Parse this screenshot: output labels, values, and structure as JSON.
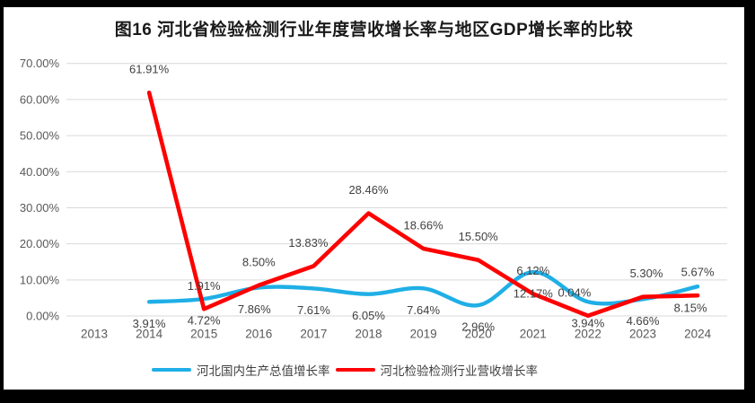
{
  "frame": {
    "background": "#000000",
    "surface": "#ffffff"
  },
  "chart_data": {
    "type": "line",
    "title": "图16 河北省检验检测行业年度营收增长率与地区GDP增长率的比较",
    "categories": [
      "2013",
      "2014",
      "2015",
      "2016",
      "2017",
      "2018",
      "2019",
      "2020",
      "2021",
      "2022",
      "2023",
      "2024"
    ],
    "series": [
      {
        "name": "河北国内生产总值增长率",
        "color": "#1FAFE6",
        "values": [
          null,
          3.91,
          4.72,
          7.86,
          7.61,
          6.05,
          7.64,
          2.96,
          12.17,
          3.94,
          4.66,
          8.15
        ],
        "labels": [
          "",
          "3.91%",
          "4.72%",
          "7.86%",
          "7.61%",
          "6.05%",
          "7.64%",
          "2.96%",
          "12.17%",
          "3.94%",
          "4.66%",
          "8.15%"
        ],
        "label_position": "below",
        "smooth": true
      },
      {
        "name": "河北检验检测行业营收增长率",
        "color": "#FE0000",
        "values": [
          null,
          61.91,
          1.91,
          8.5,
          13.83,
          28.46,
          18.66,
          15.5,
          6.12,
          0.04,
          5.3,
          5.67
        ],
        "labels": [
          "",
          "61.91%",
          "1.91%",
          "8.50%",
          "13.83%",
          "28.46%",
          "18.66%",
          "15.50%",
          "6.12%",
          "0.04%",
          "5.30%",
          "5.67%"
        ],
        "label_position": "above",
        "smooth": false
      }
    ],
    "y_axis": {
      "min": 0,
      "max": 70,
      "step": 10,
      "tick_labels": [
        "0.00%",
        "10.00%",
        "20.00%",
        "30.00%",
        "40.00%",
        "50.00%",
        "60.00%",
        "70.00%"
      ],
      "unit": "%"
    },
    "x_axis": {
      "tick_labels_are_years": true
    },
    "grid": true,
    "legend_position": "bottom",
    "style": {
      "grid_color": "#D9D9D9",
      "tick_text_color": "#595959",
      "data_label_color": "#404040",
      "title_color": "#1a1a1a"
    }
  }
}
